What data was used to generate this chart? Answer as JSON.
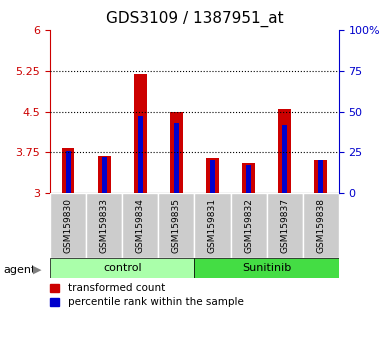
{
  "title": "GDS3109 / 1387951_at",
  "samples": [
    "GSM159830",
    "GSM159833",
    "GSM159834",
    "GSM159835",
    "GSM159831",
    "GSM159832",
    "GSM159837",
    "GSM159838"
  ],
  "red_values": [
    3.82,
    3.68,
    5.2,
    4.5,
    3.65,
    3.55,
    4.55,
    3.6
  ],
  "blue_values_pct": [
    26,
    22,
    47,
    43,
    20,
    17,
    42,
    20
  ],
  "ylim_left": [
    3.0,
    6.0
  ],
  "ylim_right": [
    0,
    100
  ],
  "yticks_left": [
    3.0,
    3.75,
    4.5,
    5.25,
    6.0
  ],
  "yticks_right": [
    0,
    25,
    50,
    75,
    100
  ],
  "ytick_labels_left": [
    "3",
    "3.75",
    "4.5",
    "5.25",
    "6"
  ],
  "ytick_labels_right": [
    "0",
    "25",
    "50",
    "75",
    "100%"
  ],
  "hlines": [
    3.75,
    4.5,
    5.25
  ],
  "control_label": "control",
  "sunitinib_label": "Sunitinib",
  "agent_label": "agent",
  "legend_red": "transformed count",
  "legend_blue": "percentile rank within the sample",
  "red_color": "#cc0000",
  "blue_color": "#0000cc",
  "control_bg": "#aaffaa",
  "sunitinib_bg": "#44dd44",
  "label_bg": "#cccccc",
  "title_fontsize": 11,
  "tick_fontsize": 8,
  "bar_width": 0.35
}
